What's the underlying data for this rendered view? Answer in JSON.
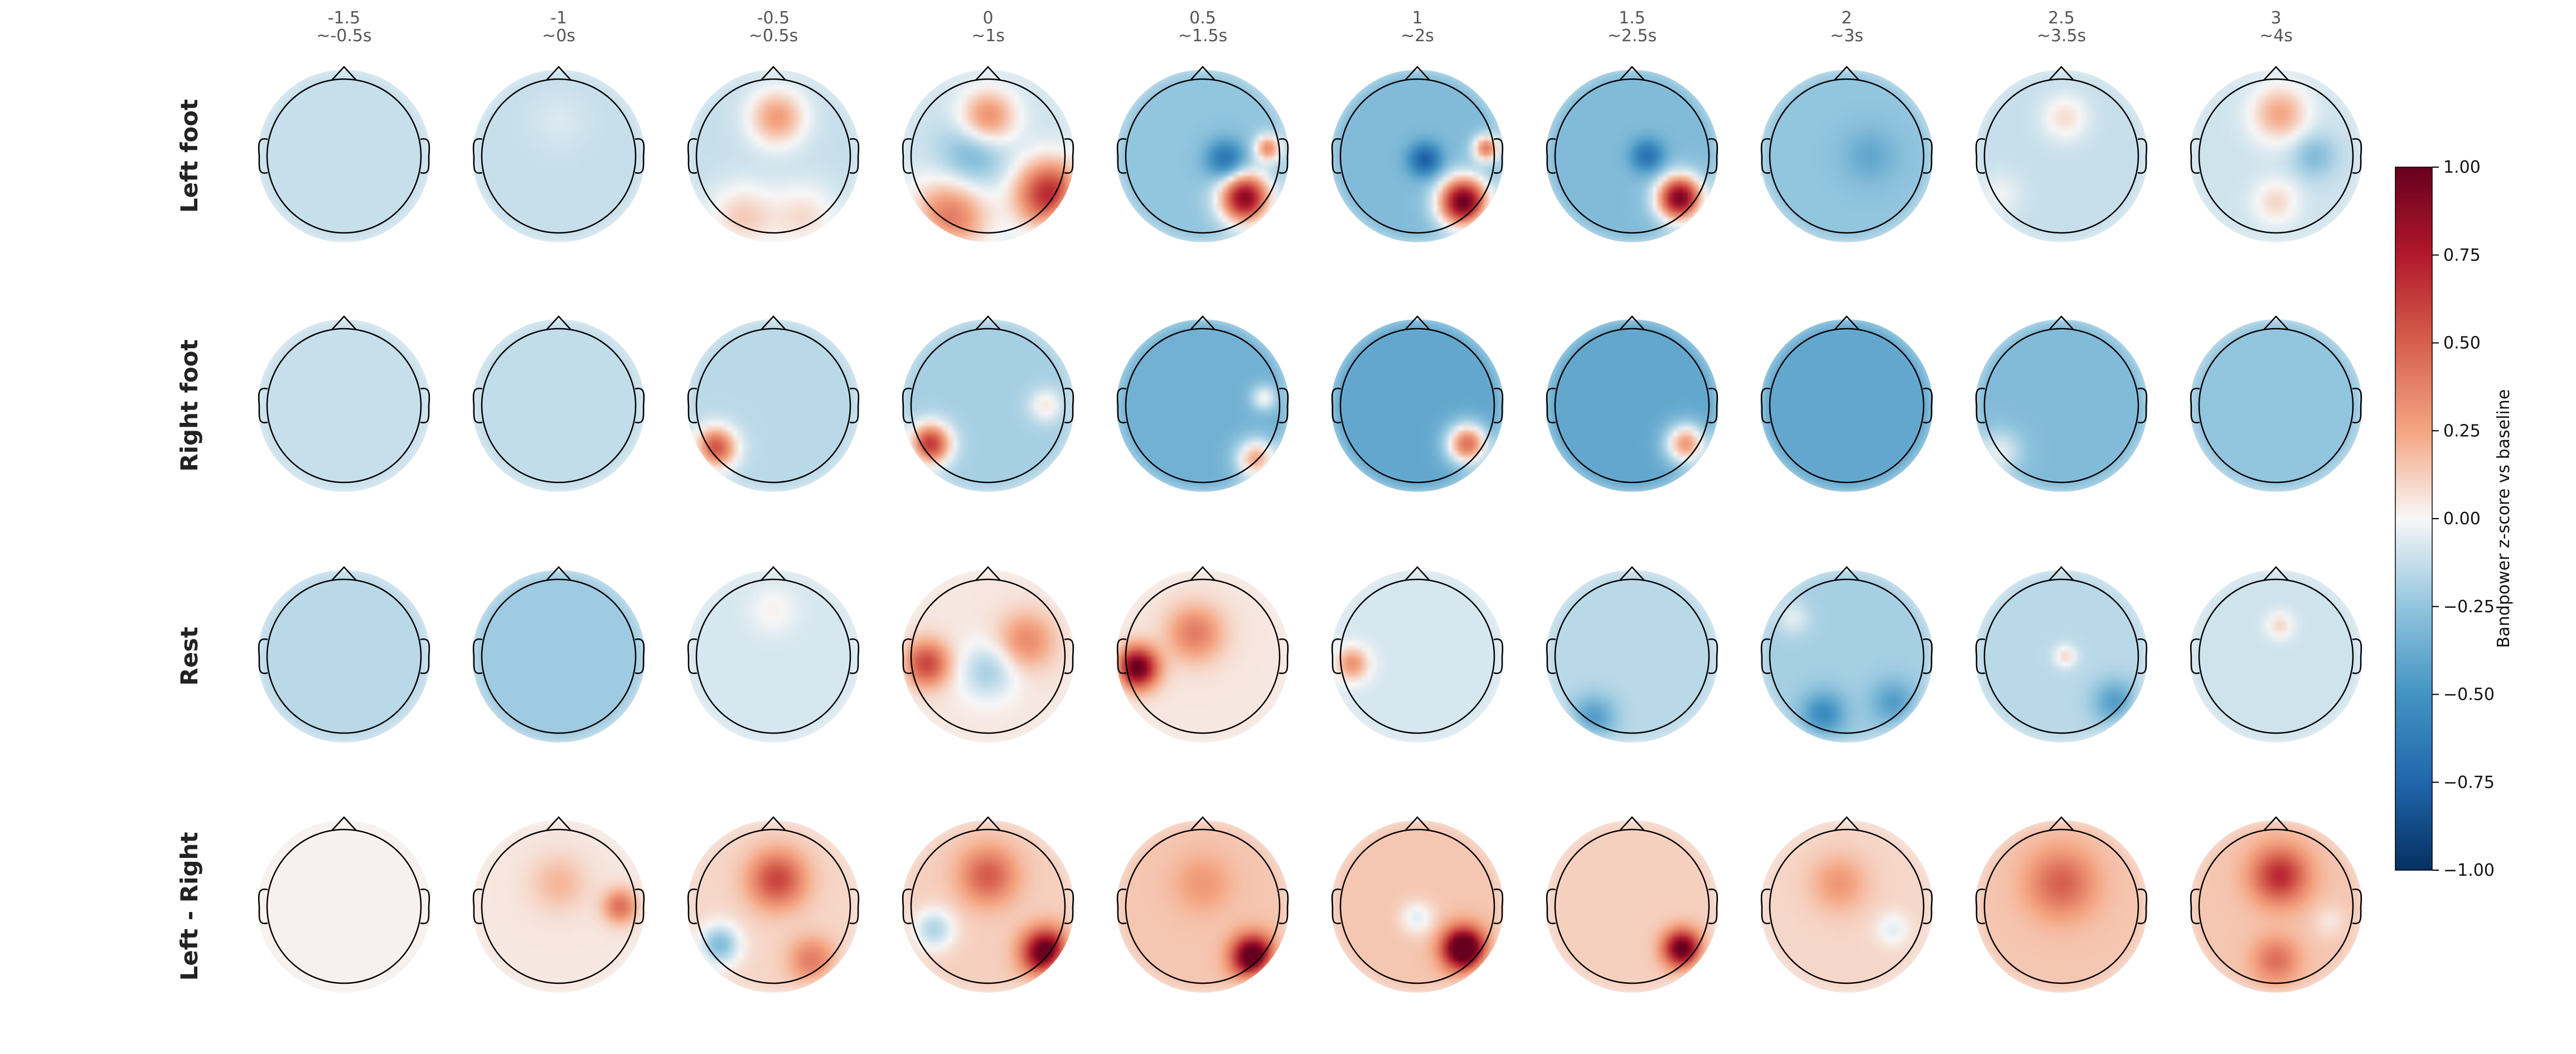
{
  "chart_data": {
    "type": "heatmap",
    "columns": [
      {
        "time": "-1.5",
        "window": "~-0.5s"
      },
      {
        "time": "-1",
        "window": "~0s"
      },
      {
        "time": "-0.5",
        "window": "~0.5s"
      },
      {
        "time": "0",
        "window": "~1s"
      },
      {
        "time": "0.5",
        "window": "~1.5s"
      },
      {
        "time": "1",
        "window": "~2s"
      },
      {
        "time": "1.5",
        "window": "~2.5s"
      },
      {
        "time": "2",
        "window": "~3s"
      },
      {
        "time": "2.5",
        "window": "~3.5s"
      },
      {
        "time": "3",
        "window": "~4s"
      }
    ],
    "rows": [
      {
        "label": "Left foot",
        "maps": [
          {
            "base": -0.12,
            "blobs": []
          },
          {
            "base": -0.12,
            "blobs": [
              {
                "x": 0.0,
                "y": -0.45,
                "v": 0.05,
                "s": 0.25
              }
            ]
          },
          {
            "base": -0.12,
            "blobs": [
              {
                "x": 0.05,
                "y": -0.5,
                "v": 0.4,
                "s": 0.25
              },
              {
                "x": -0.4,
                "y": 0.8,
                "v": 0.25,
                "s": 0.3
              },
              {
                "x": 0.4,
                "y": 0.8,
                "v": 0.2,
                "s": 0.3
              }
            ]
          },
          {
            "base": -0.1,
            "blobs": [
              {
                "x": 0.0,
                "y": -0.5,
                "v": 0.45,
                "s": 0.25
              },
              {
                "x": 0.8,
                "y": 0.5,
                "v": 0.8,
                "s": 0.3
              },
              {
                "x": -0.5,
                "y": 0.8,
                "v": 0.5,
                "s": 0.35
              },
              {
                "x": -0.2,
                "y": 0.0,
                "v": -0.25,
                "s": 0.3
              }
            ]
          },
          {
            "base": -0.25,
            "blobs": [
              {
                "x": 0.55,
                "y": 0.55,
                "v": 1.15,
                "s": 0.22
              },
              {
                "x": 0.85,
                "y": -0.1,
                "v": 0.6,
                "s": 0.12
              },
              {
                "x": 0.3,
                "y": 0.05,
                "v": -0.45,
                "s": 0.18
              }
            ]
          },
          {
            "base": -0.3,
            "blobs": [
              {
                "x": 0.6,
                "y": 0.6,
                "v": 1.3,
                "s": 0.22
              },
              {
                "x": 0.9,
                "y": -0.1,
                "v": 0.7,
                "s": 0.12
              },
              {
                "x": 0.1,
                "y": 0.05,
                "v": -0.5,
                "s": 0.15
              }
            ]
          },
          {
            "base": -0.3,
            "blobs": [
              {
                "x": 0.62,
                "y": 0.55,
                "v": 1.25,
                "s": 0.2
              },
              {
                "x": 0.2,
                "y": 0.0,
                "v": -0.4,
                "s": 0.15
              }
            ]
          },
          {
            "base": -0.25,
            "blobs": [
              {
                "x": 0.3,
                "y": 0.0,
                "v": -0.15,
                "s": 0.25
              }
            ]
          },
          {
            "base": -0.12,
            "blobs": [
              {
                "x": 0.05,
                "y": -0.5,
                "v": 0.2,
                "s": 0.2
              },
              {
                "x": -0.8,
                "y": 0.5,
                "v": 0.1,
                "s": 0.2
              }
            ]
          },
          {
            "base": -0.1,
            "blobs": [
              {
                "x": 0.05,
                "y": -0.55,
                "v": 0.35,
                "s": 0.25
              },
              {
                "x": 0.0,
                "y": 0.6,
                "v": 0.2,
                "s": 0.2
              },
              {
                "x": 0.5,
                "y": 0.0,
                "v": -0.2,
                "s": 0.2
              }
            ]
          }
        ]
      },
      {
        "label": "Right foot",
        "maps": [
          {
            "base": -0.12,
            "blobs": []
          },
          {
            "base": -0.13,
            "blobs": []
          },
          {
            "base": -0.15,
            "blobs": [
              {
                "x": -0.75,
                "y": 0.55,
                "v": 0.7,
                "s": 0.18
              }
            ]
          },
          {
            "base": -0.2,
            "blobs": [
              {
                "x": -0.75,
                "y": 0.5,
                "v": 0.85,
                "s": 0.18
              },
              {
                "x": 0.75,
                "y": 0.0,
                "v": 0.25,
                "s": 0.15
              }
            ]
          },
          {
            "base": -0.35,
            "blobs": [
              {
                "x": 0.7,
                "y": 0.7,
                "v": 0.6,
                "s": 0.18
              },
              {
                "x": 0.8,
                "y": -0.1,
                "v": 0.35,
                "s": 0.12
              }
            ]
          },
          {
            "base": -0.4,
            "blobs": [
              {
                "x": 0.65,
                "y": 0.5,
                "v": 0.85,
                "s": 0.18
              }
            ]
          },
          {
            "base": -0.4,
            "blobs": [
              {
                "x": 0.7,
                "y": 0.5,
                "v": 0.7,
                "s": 0.18
              }
            ]
          },
          {
            "base": -0.4,
            "blobs": []
          },
          {
            "base": -0.3,
            "blobs": [
              {
                "x": -0.8,
                "y": 0.6,
                "v": 0.25,
                "s": 0.2
              }
            ]
          },
          {
            "base": -0.25,
            "blobs": []
          }
        ]
      },
      {
        "label": "Rest",
        "maps": [
          {
            "base": -0.15,
            "blobs": []
          },
          {
            "base": -0.22,
            "blobs": []
          },
          {
            "base": -0.08,
            "blobs": [
              {
                "x": 0.0,
                "y": -0.6,
                "v": 0.1,
                "s": 0.2
              }
            ]
          },
          {
            "base": 0.05,
            "blobs": [
              {
                "x": -0.8,
                "y": 0.1,
                "v": 0.55,
                "s": 0.2
              },
              {
                "x": 0.5,
                "y": -0.2,
                "v": 0.3,
                "s": 0.25
              },
              {
                "x": 0.0,
                "y": 0.2,
                "v": -0.25,
                "s": 0.25
              }
            ]
          },
          {
            "base": 0.05,
            "blobs": [
              {
                "x": -0.85,
                "y": 0.15,
                "v": 1.0,
                "s": 0.18
              },
              {
                "x": -0.1,
                "y": -0.3,
                "v": 0.35,
                "s": 0.25
              }
            ]
          },
          {
            "base": -0.08,
            "blobs": [
              {
                "x": -0.85,
                "y": 0.1,
                "v": 0.4,
                "s": 0.15
              }
            ]
          },
          {
            "base": -0.15,
            "blobs": [
              {
                "x": -0.5,
                "y": 0.8,
                "v": -0.3,
                "s": 0.2
              }
            ]
          },
          {
            "base": -0.2,
            "blobs": [
              {
                "x": -0.3,
                "y": 0.75,
                "v": -0.35,
                "s": 0.2
              },
              {
                "x": 0.6,
                "y": 0.6,
                "v": -0.25,
                "s": 0.2
              },
              {
                "x": -0.7,
                "y": -0.5,
                "v": 0.15,
                "s": 0.15
              }
            ]
          },
          {
            "base": -0.15,
            "blobs": [
              {
                "x": 0.05,
                "y": 0.0,
                "v": 0.25,
                "s": 0.1
              },
              {
                "x": 0.7,
                "y": 0.6,
                "v": -0.3,
                "s": 0.2
              }
            ]
          },
          {
            "base": -0.1,
            "blobs": [
              {
                "x": 0.05,
                "y": -0.4,
                "v": 0.2,
                "s": 0.12
              }
            ]
          }
        ]
      },
      {
        "label": "Left - Right",
        "maps": [
          {
            "base": 0.02,
            "blobs": []
          },
          {
            "base": 0.05,
            "blobs": [
              {
                "x": 0.8,
                "y": 0.0,
                "v": 0.4,
                "s": 0.15
              },
              {
                "x": 0.0,
                "y": -0.3,
                "v": 0.15,
                "s": 0.25
              }
            ]
          },
          {
            "base": 0.1,
            "blobs": [
              {
                "x": 0.05,
                "y": -0.35,
                "v": 0.5,
                "s": 0.25
              },
              {
                "x": -0.7,
                "y": 0.5,
                "v": -0.4,
                "s": 0.18
              },
              {
                "x": 0.5,
                "y": 0.7,
                "v": 0.3,
                "s": 0.2
              }
            ]
          },
          {
            "base": 0.12,
            "blobs": [
              {
                "x": 0.75,
                "y": 0.6,
                "v": 1.0,
                "s": 0.2
              },
              {
                "x": 0.0,
                "y": -0.4,
                "v": 0.4,
                "s": 0.25
              },
              {
                "x": -0.7,
                "y": 0.3,
                "v": -0.3,
                "s": 0.18
              }
            ]
          },
          {
            "base": 0.15,
            "blobs": [
              {
                "x": 0.65,
                "y": 0.65,
                "v": 1.05,
                "s": 0.18
              },
              {
                "x": 0.0,
                "y": -0.3,
                "v": 0.15,
                "s": 0.25
              }
            ]
          },
          {
            "base": 0.15,
            "blobs": [
              {
                "x": 0.6,
                "y": 0.55,
                "v": 1.2,
                "s": 0.18
              },
              {
                "x": 0.0,
                "y": 0.15,
                "v": -0.2,
                "s": 0.15
              }
            ]
          },
          {
            "base": 0.12,
            "blobs": [
              {
                "x": 0.65,
                "y": 0.55,
                "v": 0.95,
                "s": 0.16
              }
            ]
          },
          {
            "base": 0.1,
            "blobs": [
              {
                "x": -0.1,
                "y": -0.3,
                "v": 0.2,
                "s": 0.25
              },
              {
                "x": 0.6,
                "y": 0.3,
                "v": -0.15,
                "s": 0.15
              }
            ]
          },
          {
            "base": 0.15,
            "blobs": [
              {
                "x": 0.0,
                "y": -0.3,
                "v": 0.35,
                "s": 0.3
              }
            ]
          },
          {
            "base": 0.15,
            "blobs": [
              {
                "x": 0.05,
                "y": -0.4,
                "v": 0.55,
                "s": 0.25
              },
              {
                "x": 0.0,
                "y": 0.7,
                "v": 0.3,
                "s": 0.2
              },
              {
                "x": 0.7,
                "y": 0.2,
                "v": -0.1,
                "s": 0.15
              }
            ]
          }
        ]
      }
    ],
    "colormap": "RdBu_r",
    "vlim": [
      -1,
      1
    ],
    "colorbar": {
      "label": "Bandpower z-score vs baseline",
      "ticks": [
        "1.00",
        "0.75",
        "0.50",
        "0.25",
        "0.00",
        "−0.25",
        "−0.50",
        "−0.75",
        "−1.00"
      ]
    }
  }
}
